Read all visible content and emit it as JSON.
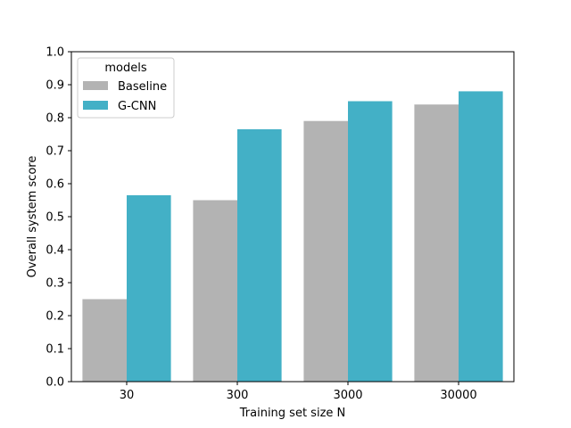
{
  "chart_data": {
    "type": "bar",
    "title": "",
    "xlabel": "Training set size N",
    "ylabel": "Overall system score",
    "categories": [
      "30",
      "300",
      "3000",
      "30000"
    ],
    "series": [
      {
        "name": "Baseline",
        "color": "#b3b3b3",
        "values": [
          0.25,
          0.55,
          0.79,
          0.84
        ]
      },
      {
        "name": "G-CNN",
        "color": "#43b0c6",
        "values": [
          0.565,
          0.765,
          0.85,
          0.88
        ]
      }
    ],
    "ylim": [
      0,
      1.0
    ],
    "yticks": [
      0.0,
      0.1,
      0.2,
      0.3,
      0.4,
      0.5,
      0.6,
      0.7,
      0.8,
      0.9,
      1.0
    ],
    "ytick_labels": [
      "0.0",
      "0.1",
      "0.2",
      "0.3",
      "0.4",
      "0.5",
      "0.6",
      "0.7",
      "0.8",
      "0.9",
      "1.0"
    ],
    "grid": false,
    "legend": {
      "title": "models",
      "placement": "top-left"
    }
  }
}
